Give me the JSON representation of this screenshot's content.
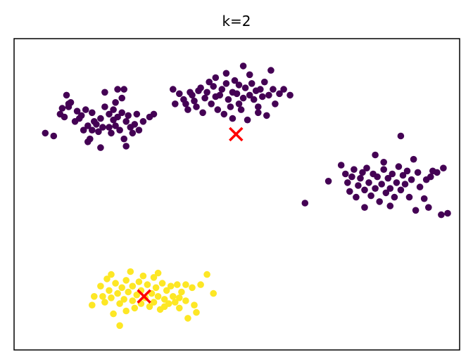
{
  "chart_data": {
    "type": "scatter",
    "title": "k=2",
    "xlim": [
      0,
      100
    ],
    "ylim": [
      0,
      100
    ],
    "xlabel": "",
    "ylabel": "",
    "grid": false,
    "legend": "none",
    "axis_ticks": "hidden",
    "colors": {
      "cluster_0": "#440154",
      "cluster_1": "#fde725",
      "centroid": "#ff0000"
    },
    "centroids": [
      {
        "cluster": 0,
        "x": 49.8,
        "y": 70.6
      },
      {
        "cluster": 1,
        "x": 28.2,
        "y": 15.0
      }
    ],
    "clusters": [
      {
        "cluster": 0,
        "points": [
          [
            5.0,
            71.0
          ],
          [
            7.0,
            70.0
          ],
          [
            8.5,
            77.5
          ],
          [
            9.5,
            76.5
          ],
          [
            9.0,
            79.5
          ],
          [
            10.5,
            80.0
          ],
          [
            11.0,
            81.5
          ],
          [
            10.0,
            84.0
          ],
          [
            10.5,
            81.0
          ],
          [
            12.0,
            75.0
          ],
          [
            12.5,
            78.5
          ],
          [
            13.0,
            76.0
          ],
          [
            13.5,
            77.0
          ],
          [
            14.0,
            72.0
          ],
          [
            14.5,
            79.0
          ],
          [
            15.0,
            73.5
          ],
          [
            15.5,
            69.0
          ],
          [
            15.0,
            68.0
          ],
          [
            16.0,
            72.0
          ],
          [
            16.5,
            75.0
          ],
          [
            16.0,
            78.0
          ],
          [
            17.0,
            74.0
          ],
          [
            17.5,
            71.5
          ],
          [
            18.0,
            66.0
          ],
          [
            18.0,
            76.0
          ],
          [
            18.5,
            73.0
          ],
          [
            19.0,
            80.0
          ],
          [
            19.0,
            85.0
          ],
          [
            20.0,
            73.0
          ],
          [
            20.0,
            77.5
          ],
          [
            20.5,
            71.0
          ],
          [
            21.0,
            75.5
          ],
          [
            21.0,
            79.0
          ],
          [
            21.5,
            73.5
          ],
          [
            21.5,
            81.5
          ],
          [
            22.0,
            76.5
          ],
          [
            22.0,
            86.0
          ],
          [
            22.5,
            72.0
          ],
          [
            23.0,
            83.0
          ],
          [
            23.0,
            78.0
          ],
          [
            23.5,
            86.0
          ],
          [
            23.5,
            69.0
          ],
          [
            24.0,
            75.0
          ],
          [
            24.5,
            77.0
          ],
          [
            24.0,
            66.5
          ],
          [
            25.0,
            73.0
          ],
          [
            25.5,
            71.0
          ],
          [
            26.0,
            74.0
          ],
          [
            26.5,
            77.5
          ],
          [
            27.0,
            72.0
          ],
          [
            28.0,
            75.0
          ],
          [
            29.5,
            76.5
          ],
          [
            30.5,
            77.5
          ],
          [
            35.0,
            86.0
          ],
          [
            35.5,
            81.0
          ],
          [
            36.5,
            84.5
          ],
          [
            37.5,
            82.5
          ],
          [
            38.0,
            81.0
          ],
          [
            38.5,
            79.0
          ],
          [
            39.0,
            85.0
          ],
          [
            39.5,
            84.0
          ],
          [
            40.0,
            82.0
          ],
          [
            40.5,
            80.0
          ],
          [
            41.0,
            85.5
          ],
          [
            41.5,
            86.5
          ],
          [
            42.0,
            78.0
          ],
          [
            42.5,
            83.0
          ],
          [
            43.0,
            85.0
          ],
          [
            43.5,
            88.5
          ],
          [
            44.0,
            81.0
          ],
          [
            44.5,
            87.0
          ],
          [
            45.0,
            90.0
          ],
          [
            45.0,
            83.5
          ],
          [
            45.5,
            79.0
          ],
          [
            46.0,
            84.0
          ],
          [
            46.5,
            86.0
          ],
          [
            47.0,
            77.5
          ],
          [
            47.5,
            88.0
          ],
          [
            47.5,
            91.5
          ],
          [
            48.0,
            82.5
          ],
          [
            48.5,
            80.0
          ],
          [
            49.0,
            85.0
          ],
          [
            49.0,
            76.0
          ],
          [
            49.5,
            89.0
          ],
          [
            50.0,
            84.5
          ],
          [
            50.5,
            87.5
          ],
          [
            50.5,
            81.0
          ],
          [
            51.0,
            79.0
          ],
          [
            51.5,
            83.0
          ],
          [
            51.5,
            94.0
          ],
          [
            52.0,
            86.5
          ],
          [
            52.5,
            75.5
          ],
          [
            53.0,
            84.0
          ],
          [
            53.0,
            91.0
          ],
          [
            53.5,
            88.0
          ],
          [
            54.0,
            82.5
          ],
          [
            54.5,
            85.5
          ],
          [
            55.0,
            80.0
          ],
          [
            55.0,
            78.0
          ],
          [
            55.5,
            86.0
          ],
          [
            56.0,
            83.5
          ],
          [
            56.5,
            88.5
          ],
          [
            57.0,
            77.0
          ],
          [
            57.5,
            84.0
          ],
          [
            58.0,
            92.5
          ],
          [
            58.5,
            86.0
          ],
          [
            59.0,
            81.0
          ],
          [
            60.0,
            84.5
          ],
          [
            61.0,
            86.0
          ],
          [
            62.5,
            84.0
          ],
          [
            66.0,
            47.0
          ],
          [
            71.5,
            54.5
          ],
          [
            74.5,
            60.0
          ],
          [
            75.5,
            57.0
          ],
          [
            76.0,
            54.0
          ],
          [
            76.5,
            51.0
          ],
          [
            77.0,
            56.0
          ],
          [
            77.5,
            58.5
          ],
          [
            78.0,
            49.0
          ],
          [
            78.5,
            53.0
          ],
          [
            79.0,
            55.5
          ],
          [
            79.5,
            57.5
          ],
          [
            80.0,
            51.5
          ],
          [
            80.0,
            45.5
          ],
          [
            80.5,
            59.0
          ],
          [
            81.0,
            54.0
          ],
          [
            81.5,
            49.5
          ],
          [
            82.0,
            57.0
          ],
          [
            82.5,
            52.0
          ],
          [
            82.5,
            63.5
          ],
          [
            83.0,
            56.0
          ],
          [
            83.5,
            47.5
          ],
          [
            84.0,
            53.5
          ],
          [
            84.5,
            58.5
          ],
          [
            84.5,
            61.0
          ],
          [
            85.0,
            50.5
          ],
          [
            85.5,
            55.5
          ],
          [
            86.0,
            52.0
          ],
          [
            86.0,
            46.0
          ],
          [
            86.5,
            57.0
          ],
          [
            87.0,
            49.0
          ],
          [
            87.5,
            54.0
          ],
          [
            88.0,
            59.5
          ],
          [
            88.5,
            51.5
          ],
          [
            88.5,
            70.0
          ],
          [
            89.0,
            56.5
          ],
          [
            89.5,
            53.5
          ],
          [
            90.0,
            58.0
          ],
          [
            90.5,
            49.0
          ],
          [
            91.0,
            55.0
          ],
          [
            91.5,
            62.0
          ],
          [
            92.0,
            44.5
          ],
          [
            92.5,
            57.5
          ],
          [
            93.0,
            52.5
          ],
          [
            94.0,
            48.5
          ],
          [
            94.5,
            55.0
          ],
          [
            95.0,
            45.5
          ],
          [
            95.5,
            56.0
          ],
          [
            96.0,
            58.0
          ],
          [
            97.0,
            57.5
          ],
          [
            98.0,
            43.0
          ],
          [
            98.5,
            59.0
          ],
          [
            99.5,
            43.5
          ]
        ]
      },
      {
        "cluster": 1,
        "points": [
          [
            16.0,
            12.0
          ],
          [
            16.5,
            15.0
          ],
          [
            18.0,
            18.5
          ],
          [
            18.5,
            15.0
          ],
          [
            19.0,
            13.0
          ],
          [
            19.5,
            21.0
          ],
          [
            20.0,
            17.0
          ],
          [
            20.5,
            14.5
          ],
          [
            20.5,
            22.5
          ],
          [
            21.0,
            9.0
          ],
          [
            21.5,
            19.5
          ],
          [
            22.0,
            16.0
          ],
          [
            22.5,
            12.5
          ],
          [
            22.5,
            5.0
          ],
          [
            23.0,
            18.0
          ],
          [
            23.5,
            14.0
          ],
          [
            24.0,
            20.5
          ],
          [
            24.0,
            10.0
          ],
          [
            24.5,
            16.5
          ],
          [
            25.0,
            23.5
          ],
          [
            25.5,
            13.5
          ],
          [
            25.5,
            18.5
          ],
          [
            26.0,
            11.0
          ],
          [
            26.5,
            15.5
          ],
          [
            27.0,
            20.0
          ],
          [
            27.5,
            12.5
          ],
          [
            27.5,
            17.0
          ],
          [
            28.0,
            22.0
          ],
          [
            28.5,
            14.5
          ],
          [
            29.0,
            19.0
          ],
          [
            29.5,
            11.5
          ],
          [
            30.0,
            16.0
          ],
          [
            30.5,
            21.5
          ],
          [
            30.5,
            13.0
          ],
          [
            31.0,
            18.0
          ],
          [
            31.5,
            23.0
          ],
          [
            31.5,
            15.0
          ],
          [
            32.0,
            10.5
          ],
          [
            32.5,
            19.5
          ],
          [
            33.0,
            14.0
          ],
          [
            33.0,
            11.5
          ],
          [
            33.5,
            17.0
          ],
          [
            34.0,
            12.5
          ],
          [
            34.5,
            18.5
          ],
          [
            35.0,
            15.0
          ],
          [
            35.5,
            13.0
          ],
          [
            36.0,
            19.0
          ],
          [
            36.5,
            11.0
          ],
          [
            36.5,
            14.5
          ],
          [
            37.0,
            16.5
          ],
          [
            38.0,
            19.0
          ],
          [
            38.0,
            13.5
          ],
          [
            38.5,
            7.5
          ],
          [
            39.5,
            18.0
          ],
          [
            40.0,
            12.0
          ],
          [
            40.5,
            9.5
          ],
          [
            41.5,
            19.0
          ],
          [
            43.0,
            22.5
          ],
          [
            44.5,
            16.0
          ]
        ]
      }
    ]
  }
}
